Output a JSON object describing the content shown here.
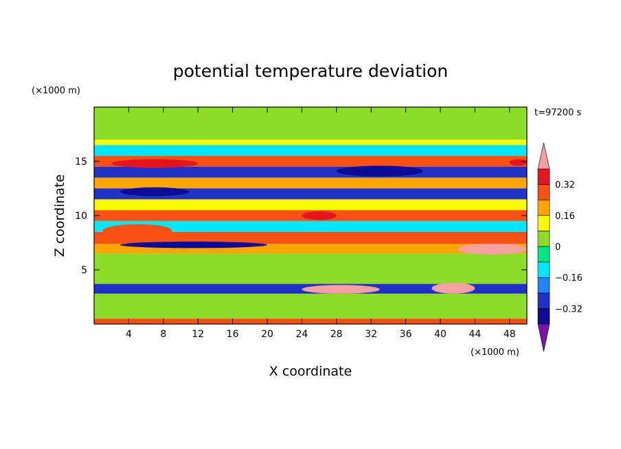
{
  "chart_data": {
    "type": "heatmap",
    "title": "potential temperature deviation",
    "xlabel": "X coordinate",
    "ylabel": "Z coordinate",
    "x_unit": "(×1000 m)",
    "y_unit": "(×1000 m)",
    "time_label": "t=97200 s",
    "xlim": [
      0,
      50
    ],
    "ylim": [
      0,
      20
    ],
    "x_ticks": [
      4,
      8,
      12,
      16,
      20,
      24,
      28,
      32,
      36,
      40,
      44,
      48
    ],
    "y_ticks": [
      5,
      10,
      15
    ],
    "colorbar": {
      "levels": [
        -0.4,
        -0.32,
        -0.24,
        -0.16,
        -0.08,
        0,
        0.08,
        0.16,
        0.24,
        0.32,
        0.4
      ],
      "tick_values": [
        0.32,
        0.16,
        0,
        -0.16,
        -0.32
      ],
      "tick_labels": [
        "0.32",
        "0.16",
        "0",
        "−0.16",
        "−0.32"
      ],
      "colors": [
        "#2d0a82",
        "#0d0c99",
        "#1f31c6",
        "#1e84ff",
        "#00e6ff",
        "#00e882",
        "#8cdc28",
        "#fafa00",
        "#ffa500",
        "#fa5014",
        "#e6141e",
        "#f5a0a0",
        "#7d14aa"
      ]
    },
    "bands": [
      {
        "z": [
          0,
          0.5
        ],
        "value": 0.24
      },
      {
        "z": [
          0.5,
          2.8
        ],
        "value": 0.02
      },
      {
        "z": [
          2.8,
          3.7
        ],
        "value": -0.3
      },
      {
        "z": [
          3.7,
          6.5
        ],
        "value": 0.01
      },
      {
        "z": [
          6.5,
          7.4
        ],
        "value": 0.18
      },
      {
        "z": [
          7.4,
          8.5
        ],
        "value": 0.26
      },
      {
        "z": [
          8.5,
          9.5
        ],
        "value": -0.1
      },
      {
        "z": [
          9.5,
          10.5
        ],
        "value": 0.3
      },
      {
        "z": [
          10.5,
          11.5
        ],
        "value": 0.08
      },
      {
        "z": [
          11.5,
          12.5
        ],
        "value": -0.3
      },
      {
        "z": [
          12.5,
          13.5
        ],
        "value": 0.2
      },
      {
        "z": [
          13.5,
          14.5
        ],
        "value": -0.25
      },
      {
        "z": [
          14.5,
          15.5
        ],
        "value": 0.28
      },
      {
        "z": [
          15.5,
          16.5
        ],
        "value": -0.12
      },
      {
        "z": [
          16.5,
          17.0
        ],
        "value": 0.12
      },
      {
        "z": [
          17.0,
          20.0
        ],
        "value": 0.02
      }
    ],
    "features": [
      {
        "x": [
          1,
          9
        ],
        "z": [
          8,
          9.2
        ],
        "value": 0.25
      },
      {
        "x": [
          3,
          20
        ],
        "z": [
          7,
          7.6
        ],
        "value": -0.35
      },
      {
        "x": [
          24,
          33
        ],
        "z": [
          2.8,
          3.6
        ],
        "value": 0.45
      },
      {
        "x": [
          39,
          44
        ],
        "z": [
          2.8,
          3.8
        ],
        "value": 0.45
      },
      {
        "x": [
          42,
          50
        ],
        "z": [
          6.4,
          7.4
        ],
        "value": 0.45
      },
      {
        "x": [
          24,
          28
        ],
        "z": [
          9.6,
          10.4
        ],
        "value": 0.38
      },
      {
        "x": [
          28,
          38
        ],
        "z": [
          13.6,
          14.6
        ],
        "value": -0.38
      },
      {
        "x": [
          3,
          11
        ],
        "z": [
          11.8,
          12.6
        ],
        "value": -0.38
      },
      {
        "x": [
          2,
          12
        ],
        "z": [
          14.4,
          15.2
        ],
        "value": 0.34
      },
      {
        "x": [
          48,
          50
        ],
        "z": [
          14.6,
          15.2
        ],
        "value": 0.38
      }
    ]
  }
}
